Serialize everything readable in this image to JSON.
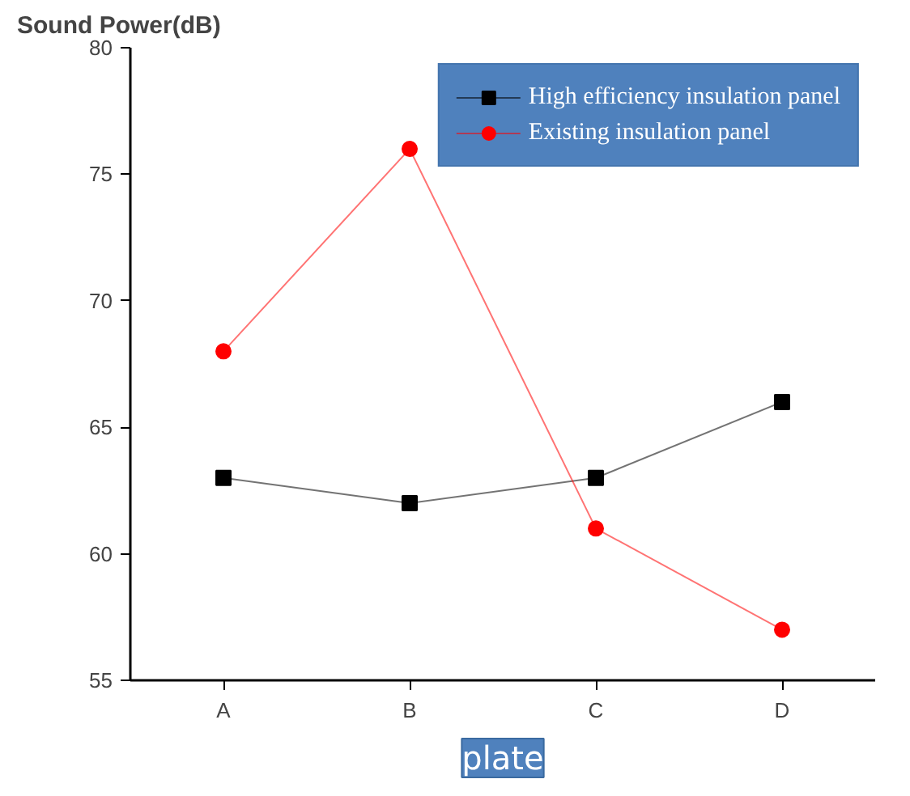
{
  "chart_data": {
    "type": "line",
    "ylabel": "Sound Power(dB)",
    "xlabel": "plate",
    "categories": [
      "A",
      "B",
      "C",
      "D"
    ],
    "series": [
      {
        "name": "High efficiency insulation panel",
        "color": "#000000",
        "marker": "square",
        "values": [
          63,
          62,
          63,
          66
        ]
      },
      {
        "name": "Existing insulation panel",
        "color": "#ff0000",
        "marker": "circle",
        "values": [
          68,
          76,
          61,
          57
        ]
      }
    ],
    "ylim": [
      55,
      80
    ],
    "yticks": [
      55,
      60,
      65,
      70,
      75,
      80
    ],
    "grid": false,
    "legend": "top right"
  }
}
